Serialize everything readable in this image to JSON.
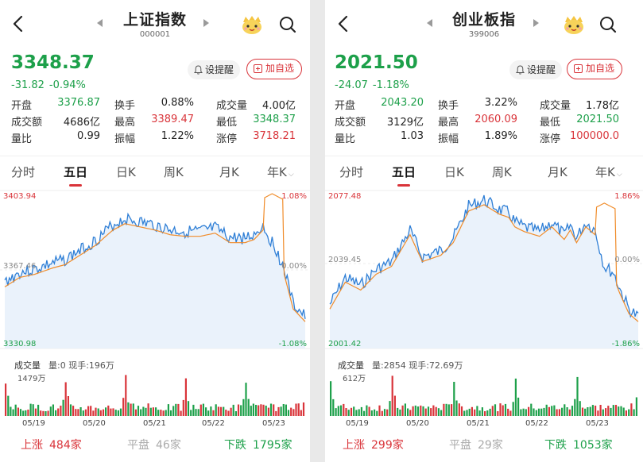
{
  "panels": [
    {
      "title": "上证指数",
      "code": "000001",
      "price": "3348.37",
      "change": "-31.82",
      "change_pct": "-0.94%",
      "remind_label": "设提醒",
      "add_label": "加自选",
      "stats": [
        [
          {
            "label": "开盘",
            "value": "3376.87",
            "color": "green"
          },
          {
            "label": "换手",
            "value": "0.88%",
            "color": "black"
          },
          {
            "label": "成交量",
            "value": "4.00亿",
            "color": "black"
          }
        ],
        [
          {
            "label": "成交额",
            "value": "4686亿",
            "color": "black"
          },
          {
            "label": "最高",
            "value": "3389.47",
            "color": "red"
          },
          {
            "label": "最低",
            "value": "3348.37",
            "color": "green"
          }
        ],
        [
          {
            "label": "量比",
            "value": "0.99",
            "color": "black"
          },
          {
            "label": "振幅",
            "value": "1.22%",
            "color": "black"
          },
          {
            "label": "涨停",
            "value": "3718.21",
            "color": "red"
          }
        ]
      ],
      "tabs": [
        "分时",
        "五日",
        "日K",
        "周K",
        "月K",
        "年K"
      ],
      "active_tab": "五日",
      "chart": {
        "y_top": "3403.94",
        "y_mid": "3367.46",
        "y_bottom": "3330.98",
        "pct_top": "1.08%",
        "pct_mid": "0.00%",
        "pct_bottom": "-1.08%"
      },
      "volume_label": "成交量",
      "volume_info": "量:0 现手:196万",
      "volume_max": "1479万",
      "dates": [
        "05/19",
        "05/20",
        "05/21",
        "05/22",
        "05/23"
      ],
      "up_label": "上涨",
      "up_count": "484家",
      "flat_label": "平盘",
      "flat_count": "46家",
      "down_label": "下跌",
      "down_count": "1795家"
    },
    {
      "title": "创业板指",
      "code": "399006",
      "price": "2021.50",
      "change": "-24.07",
      "change_pct": "-1.18%",
      "remind_label": "设提醒",
      "add_label": "加自选",
      "stats": [
        [
          {
            "label": "开盘",
            "value": "2043.20",
            "color": "green"
          },
          {
            "label": "换手",
            "value": "3.22%",
            "color": "black"
          },
          {
            "label": "成交量",
            "value": "1.78亿",
            "color": "black"
          }
        ],
        [
          {
            "label": "成交额",
            "value": "3129亿",
            "color": "black"
          },
          {
            "label": "最高",
            "value": "2060.09",
            "color": "red"
          },
          {
            "label": "最低",
            "value": "2021.50",
            "color": "green"
          }
        ],
        [
          {
            "label": "量比",
            "value": "1.03",
            "color": "black"
          },
          {
            "label": "振幅",
            "value": "1.89%",
            "color": "black"
          },
          {
            "label": "涨停",
            "value": "100000.0",
            "color": "red"
          }
        ]
      ],
      "tabs": [
        "分时",
        "五日",
        "日K",
        "周K",
        "月K",
        "年K"
      ],
      "active_tab": "五日",
      "chart": {
        "y_top": "2077.48",
        "y_mid": "2039.45",
        "y_bottom": "2001.42",
        "pct_top": "1.86%",
        "pct_mid": "0.00%",
        "pct_bottom": "-1.86%"
      },
      "volume_label": "成交量",
      "volume_info": "量:2854 现手:72.69万",
      "volume_max": "612万",
      "dates": [
        "05/19",
        "05/20",
        "05/21",
        "05/22",
        "05/23"
      ],
      "up_label": "上涨",
      "up_count": "299家",
      "flat_label": "平盘",
      "flat_count": "29家",
      "down_label": "下跌",
      "down_count": "1053家"
    }
  ],
  "colors": {
    "red": "#d9343a",
    "green": "#1da04a",
    "price_line": "#2f7fd6",
    "avg_line": "#f08c2a",
    "fill": "#eaf2fb"
  }
}
